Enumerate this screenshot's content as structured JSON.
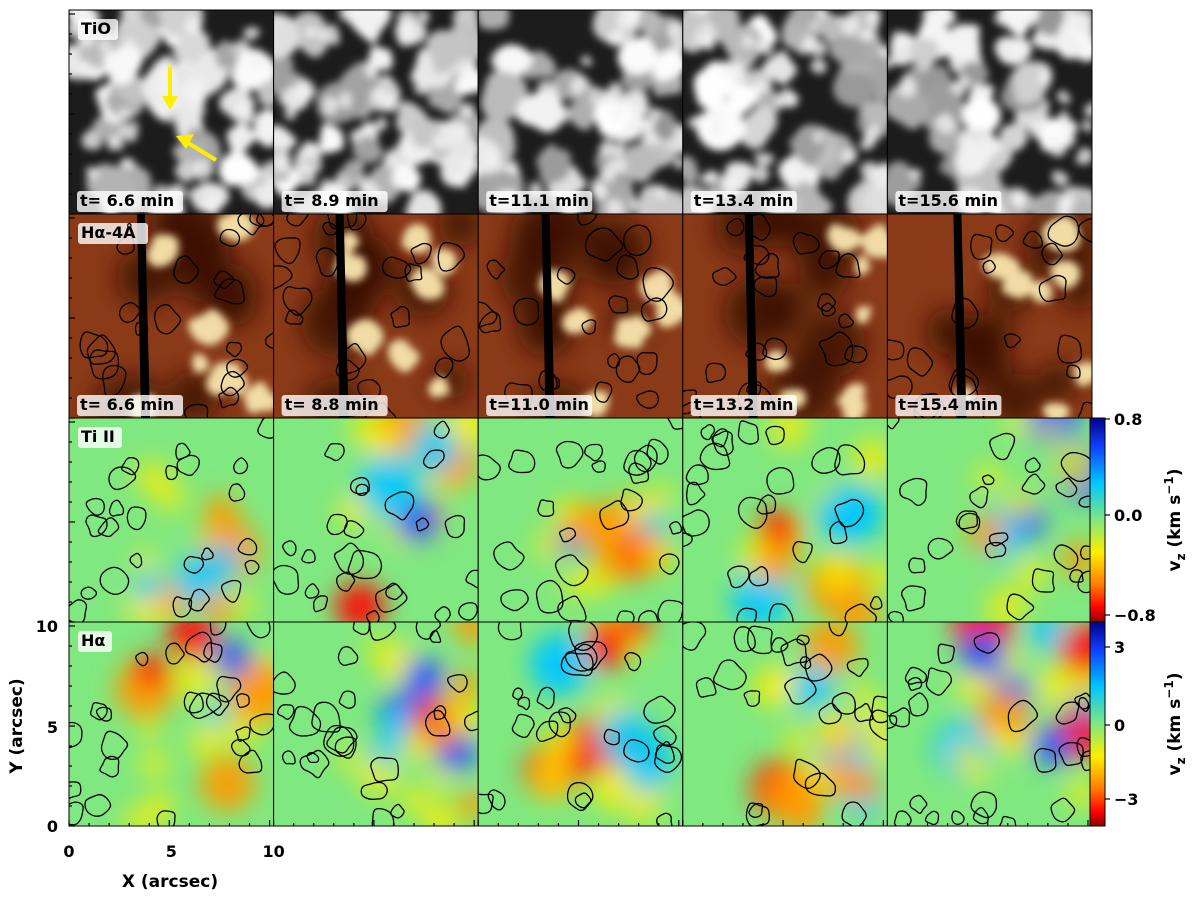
{
  "rows": [
    {
      "key": "tio",
      "label": "TiO",
      "times": [
        "t= 6.6 min",
        "t= 8.9 min",
        "t=11.1 min",
        "t=13.4 min",
        "t=15.6 min"
      ]
    },
    {
      "key": "ha_wing",
      "label": "Hα-4Å",
      "times": [
        "t= 6.6 min",
        "t= 8.8 min",
        "t=11.0 min",
        "t=13.2 min",
        "t=15.4 min"
      ]
    },
    {
      "key": "tiii",
      "label": "Ti II",
      "times": []
    },
    {
      "key": "ha",
      "label": "Hα",
      "times": []
    }
  ],
  "axes": {
    "x_label": "X (arcsec)",
    "y_label": "Y (arcsec)",
    "x_ticks": [
      "0",
      "5",
      "10"
    ],
    "y_ticks": [
      "0",
      "5",
      "10"
    ]
  },
  "colorbars": [
    {
      "label": "v_z (km s⁻¹)",
      "label_main": "v",
      "label_sub": "z",
      "label_rest": " (km s",
      "label_sup": "−1",
      "label_end": ")",
      "ticks": [
        "0.8",
        "0.0",
        "−0.8"
      ]
    },
    {
      "label": "v_z (km s⁻¹)",
      "label_main": "v",
      "label_sub": "z",
      "label_rest": " (km s",
      "label_sup": "−1",
      "label_end": ")",
      "ticks": [
        "3",
        "0",
        "−3"
      ]
    }
  ],
  "colors": {
    "arrow": "#ffee00",
    "cmap": [
      "#8b0000",
      "#ff0000",
      "#ff9a00",
      "#ffee00",
      "#80e880",
      "#00c8ff",
      "#1050ff",
      "#00008b"
    ],
    "wing_bg": "#8a3a17"
  }
}
